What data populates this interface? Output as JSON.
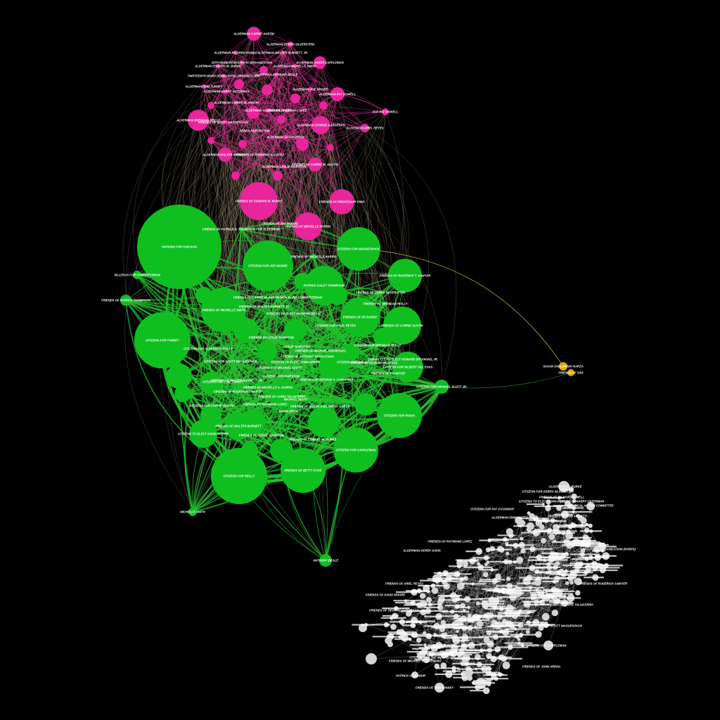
{
  "colors": {
    "background": "#000000",
    "pink": "#e8259a",
    "green": "#0fbf20",
    "grey": "#d4d4d4",
    "gold": "#e2a80e",
    "edge_pink": "#e8259a",
    "edge_mixed": "#8a7d66",
    "edge_green": "#22c22e"
  },
  "clusters": {
    "pink": {
      "labels": [
        "ALDERMAN CARRIE AUSTIN",
        "ALDERMAN DEBRA SILVERSTEIN",
        "ALDERMAN RICARDO MUNOZ",
        "ALDERMAN WALTER BURNETT, JR.",
        "14TH WARD DEMOCRATIC ORGANIZATION",
        "ALDERMAN JAMES CAPPLEMAN",
        "ALDERMAN EDWARD M. BURKE",
        "ALDERMAN MICHELLE SMITH",
        "ALDERMAN ANTHONY BEALE",
        "THIRTEENTH WARD DEMOCRATIC ORGANIZATION",
        "ALDERMAN TOM TUNNEY",
        "ALDERMAN JOE MOORE",
        "ALDERMAN HARRY OSTERMAN",
        "ALDERMAN PAT DOWELL",
        "ALDERMAN CARRIE M. AUSTIN",
        "ALD PAT DOWELL",
        "ALDERMAN GILBERT VILLEGAS",
        "FRIENDS OF LEONA LOPEZ",
        "ALDERMAN BRENDAN REILLY",
        "FRIENDS OF SCOTT WAGUESPACK",
        "ALDERMAN GEORGE CARDENAS",
        "ALDERMAN ARIEL REYES",
        "DEBRA SILVERSTEIN",
        "ALDERMAN JASON ERVIN",
        "ALDERMAN WALTER BURNETT",
        "FRIENDS OF RAYMOND A. LOPEZ",
        "FRIENDS OF CARRIE M. AUSTIN",
        "ALDERMAN LESLIE HAIRSTON",
        "FRIENDS OF EDWARD M. BURKE",
        "FRIENDS OF PROFESSOR KING",
        "FRIENDS OF JOE MOORE",
        "FRIENDS OF MICHELLE HARRIS"
      ]
    },
    "green": {
      "labels": [
        "HOPKINS FOR CHICAGO",
        "FRIENDS OF PATRICK D. THOMPSON FOR ALDERMAN",
        "CITIZENS FOR WAGUESPACK",
        "CITIZENS FOR JOE MOORE",
        "FRIENDS OF RODERICK T. SAWYER",
        "VILLEGAS FOR CONGRESSMAN",
        "FRIENDS OF PATRICK THOMPSON",
        "FRIENDS OF BRENDAN REILLY",
        "FRIENDS OF MICHELLE HARRIS",
        "PATRICK DALEY THOMPSON",
        "FRIENDS OF DEBRA SILVERSTEIN",
        "CITIZENS FOR TUNNEY",
        "FRIENDS OF WALTER BURNETT JR.",
        "FRIENDS OF CARRIE M. AUSTIN 34TH WARD COMMITTEEMAN",
        "FRIENDS OF MICHELLE SMITH",
        "CITIZENS TO ELECT ANTHONY BEALE",
        "FRIENDS OF ED BURKE",
        "FRIENDS OF CARRIE AUSTIN",
        "CITIZENS FOR ARIEL REYES",
        "CITIZENS FOR ALDERMAN REILLY",
        "FRIENDS OF LESLIE HAIRSTON",
        "CITIZENS FOR BRENDAN REILLY",
        "LESLIE HAIRSTON",
        "FRIENDS OF MICHAEL RODRIGUEZ",
        "CITIZENS FOR GILBERT VILLEGAS",
        "FRIENDS OF ANTHONY NAPOLITANO",
        "CITIZENS TO ELECT JOHN ARENA",
        "COMMITTEE TO ELECT HOWARD BROOKINS, JR.",
        "FRIENDS OF GILBERT VILLEGAS",
        "CITIZENS FOR MICHAEL SCOTT",
        "CITIZENS FOR WALDO",
        "CITIZENS FOR SCOTT WAGUESPACK",
        "FRIENDS OF WALTER BURNETT, JR.",
        "FRIENDS OF T SAWYER",
        "CITIZENS FOR MICHAEL SCOTT JR.",
        "CITIZENS FOR TOM TUNNEY",
        "FRIENDS OF GEORGE A. CARDENAS",
        "CITIZENS FOR HAIRSTON",
        "FRIENDS OF RODERICK SAWYER",
        "FRIENDS OF MICHELLE A. HARRIS",
        "FRIENDS OF CHRIS TALIAFERRO",
        "MICHAEL SCOTT",
        "CITIZENS FOR CARRIE AUSTIN",
        "FRIENDS OF RAYMOND LOPEZ",
        "JASON ERVIN",
        "FRIENDS OF SUSAN SADLOWSKI GARZA",
        "CITIZENS FOR RUGAI",
        "FRIENDS OF WALTER BURNETT",
        "CITIZENS TO ELECT DAVID MOORE",
        "FRIENDS OF LESLIE HAIRSTON",
        "CITIZENS FOR CAPPLEMAN",
        "CITIZENS FOR REILLY",
        "FRIENDS OF BETTY DYKE",
        "MICHELLE SMITH",
        "ANTHONY BEALE",
        "FRIENDS OF EDWARD M. BURKE"
      ]
    },
    "grey": {
      "labels": [
        "ALDERMAN ED BURKE",
        "CITIZENS FOR DEBRA SILVERSTEIN",
        "FRIENDS OF RICHARD M. MELL",
        "CITIZENS TO ELECT JOHN POPE",
        "FRIENDS OF HARRY OSTERMAN",
        "POLITICAL ACTION COMMITTEE",
        "CITIZENS FOR PAT O'CONNOR",
        "FRIENDS OF BOB FIORETTI",
        "POLITICAL ORGANIZATION (HARPS)",
        "CITIZENS FOR SCOTT WAGUESPACK",
        "FRIENDS OF RODERICK SAWYER",
        "FRIENDS OF CHRIS TALIAFERRO",
        "ALDERMAN EMMA MITTS",
        "FRIENDS OF RAYMOND LOPEZ",
        "ALDERMAN DEREK DAVIS",
        "CITIZENS FOR CAPPLEMAN",
        "FRIENDS OF GEORGE CARDENAS",
        "PATRICK O'CONNOR",
        "CITIZENS FOR JOE MOORE",
        "FRIENDS OF TOM TUNNEY",
        "FRIENDS OF MICHAEL R. ZALEWSKI",
        "FRIENDS OF ARIEL REYES",
        "FRIENDS OF JOHN ARENA",
        "FRIENDS OF DAVID MOORE"
      ]
    },
    "gold": {
      "labels": [
        "SUSAN SADLOWSKI GARZA",
        "FRIENDS OF SSG"
      ]
    }
  }
}
